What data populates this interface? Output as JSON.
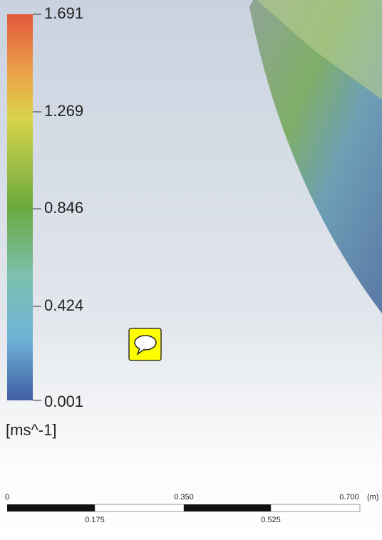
{
  "colorbar": {
    "labels": [
      "1.691",
      "1.269",
      "0.846",
      "0.424",
      "0.001"
    ],
    "unit": "[ms^-1]"
  },
  "scale_bar": {
    "top_labels": [
      "0",
      "0.350",
      "0.700"
    ],
    "unit": "(m)",
    "bottom_labels": [
      "0.175",
      "0.525"
    ]
  }
}
